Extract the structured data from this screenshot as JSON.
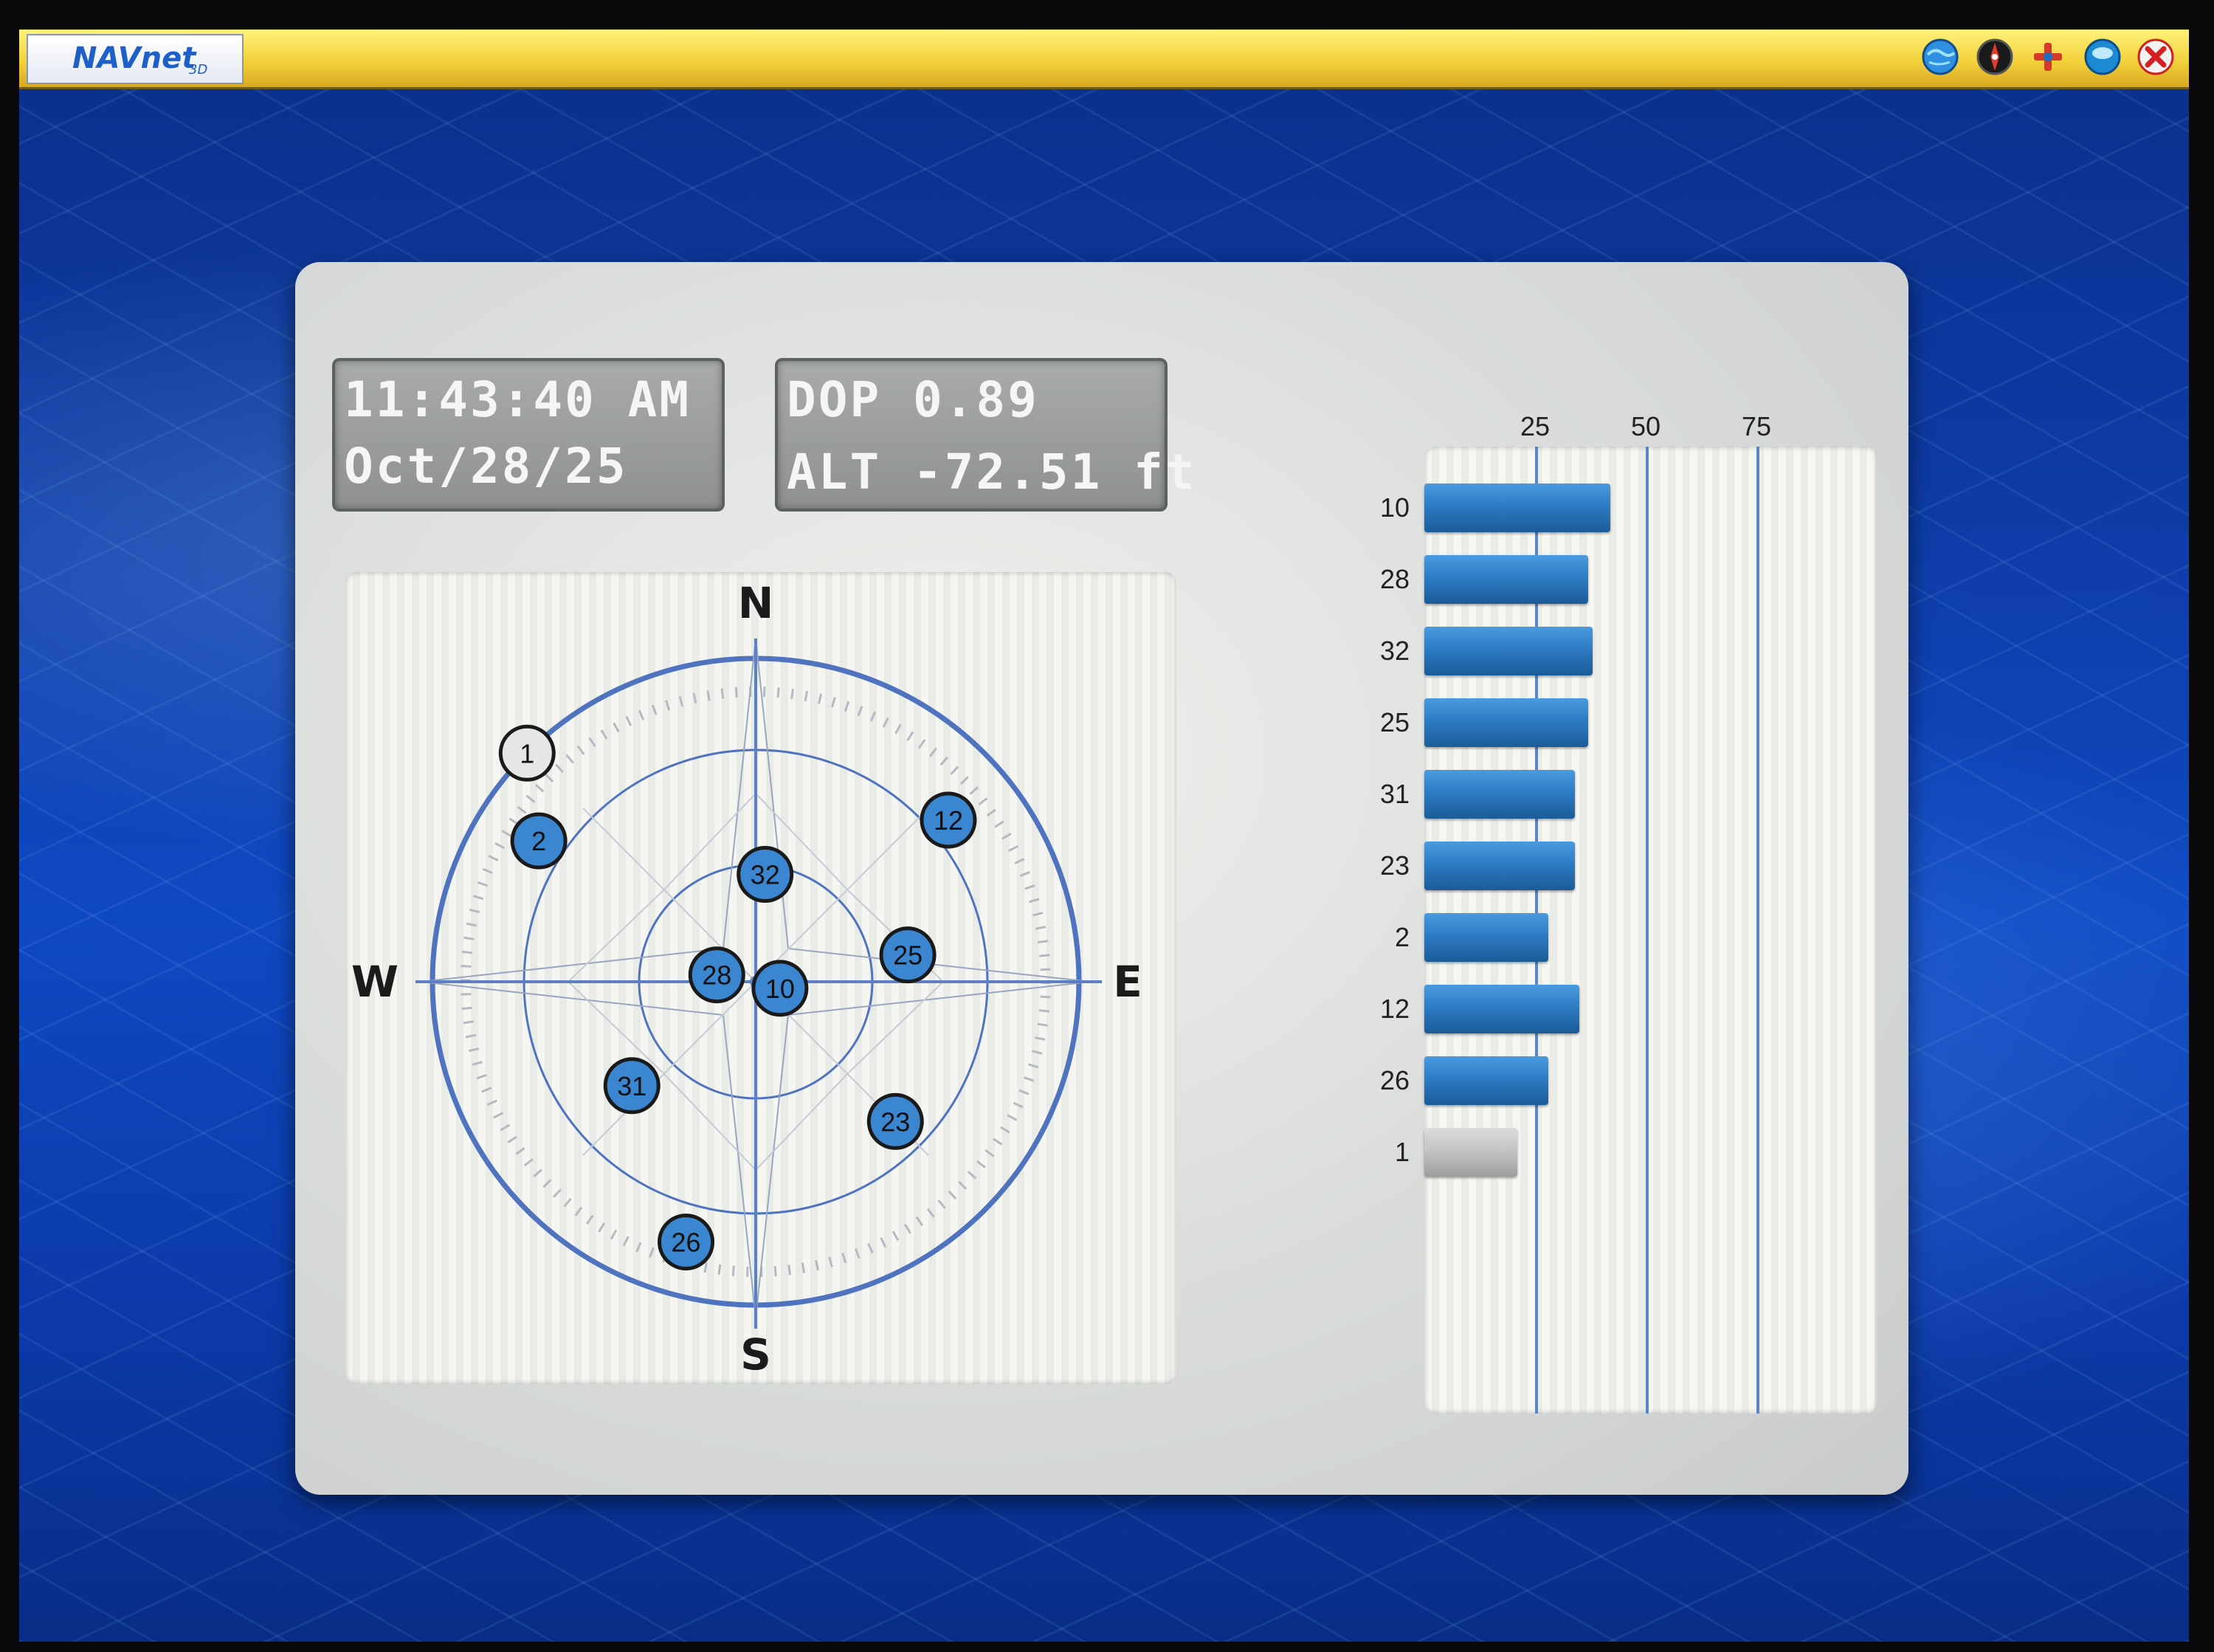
{
  "app": {
    "logo": "NAVnet",
    "logo_sub": "3D"
  },
  "toolbar": {
    "icons": [
      "globe-icon",
      "compass-icon",
      "tools-icon",
      "disk-icon",
      "close-icon"
    ]
  },
  "status": {
    "time": "11:43:40 AM",
    "date": "Oct/28/25",
    "dop": "DOP 0.89",
    "alt": "ALT -72.51 ft"
  },
  "skyplot": {
    "cardinals": {
      "n": "N",
      "s": "S",
      "e": "E",
      "w": "W"
    },
    "satellites": [
      {
        "id": "1",
        "azimuth": 315,
        "elevation": 0,
        "active": false
      },
      {
        "id": "2",
        "azimuth": 303,
        "elevation": 18,
        "active": true
      },
      {
        "id": "32",
        "azimuth": 5,
        "elevation": 60,
        "active": true
      },
      {
        "id": "12",
        "azimuth": 50,
        "elevation": 20,
        "active": true
      },
      {
        "id": "25",
        "azimuth": 80,
        "elevation": 47,
        "active": true
      },
      {
        "id": "28",
        "azimuth": 280,
        "elevation": 79,
        "active": true
      },
      {
        "id": "10",
        "azimuth": 105,
        "elevation": 83,
        "active": true
      },
      {
        "id": "31",
        "azimuth": 230,
        "elevation": 45,
        "active": true
      },
      {
        "id": "23",
        "azimuth": 135,
        "elevation": 35,
        "active": true
      },
      {
        "id": "26",
        "azimuth": 195,
        "elevation": 15,
        "active": true
      }
    ]
  },
  "chart_data": {
    "type": "bar",
    "orientation": "horizontal",
    "categories": [
      "10",
      "28",
      "32",
      "25",
      "31",
      "23",
      "2",
      "12",
      "26",
      "1"
    ],
    "values": [
      42,
      37,
      38,
      37,
      34,
      34,
      28,
      35,
      28,
      21
    ],
    "active": [
      true,
      true,
      true,
      true,
      true,
      true,
      true,
      true,
      true,
      false
    ],
    "x_ticks": [
      "25",
      "50",
      "75"
    ],
    "xlim": [
      0,
      100
    ],
    "grid": true
  }
}
